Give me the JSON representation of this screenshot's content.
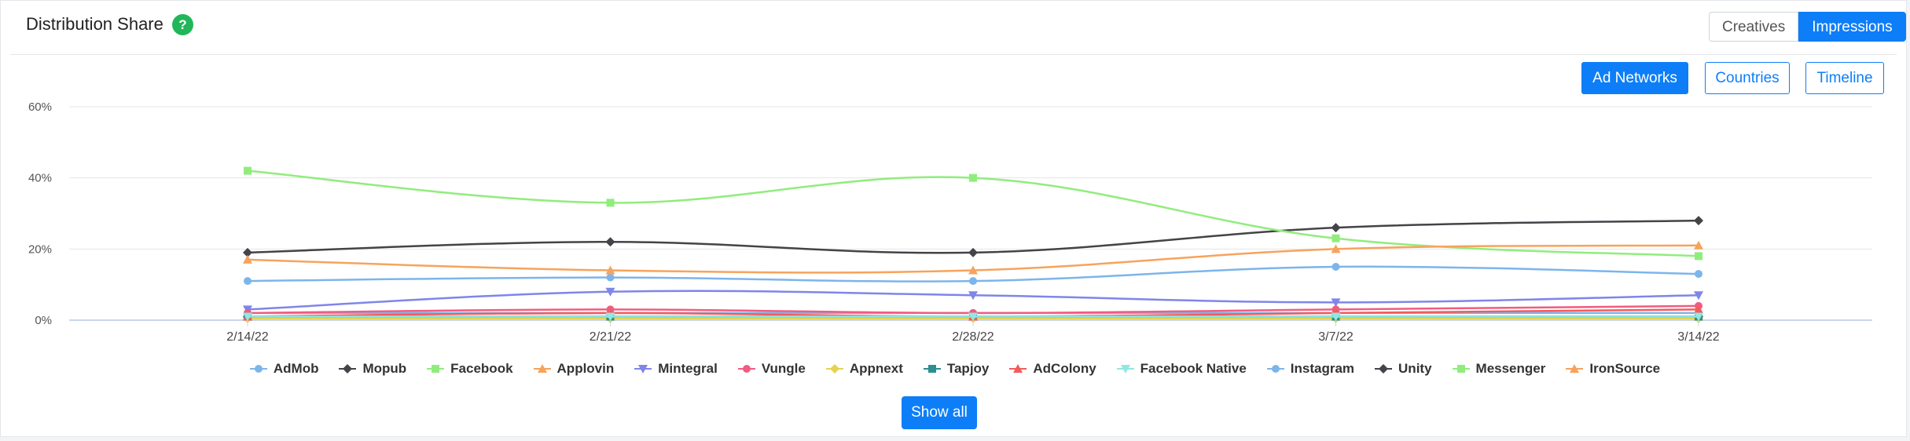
{
  "header": {
    "title": "Distribution Share",
    "help_label": "?"
  },
  "toggle": {
    "creatives_label": "Creatives",
    "impressions_label": "Impressions"
  },
  "tabs": {
    "ad_networks_label": "Ad Networks",
    "countries_label": "Countries",
    "timeline_label": "Timeline"
  },
  "show_all_label": "Show all",
  "chart_data": {
    "type": "line",
    "categories": [
      "2/14/22",
      "2/21/22",
      "2/28/22",
      "3/7/22",
      "3/14/22"
    ],
    "ylim": [
      0,
      60
    ],
    "yticks": [
      "0%",
      "20%",
      "40%",
      "60%"
    ],
    "ytick_values": [
      0,
      20,
      40,
      60
    ],
    "grid": true,
    "legend_position": "bottom",
    "series": [
      {
        "name": "AdMob",
        "color": "#7cb5ec",
        "marker": "circle",
        "values": [
          2,
          2,
          2,
          2,
          2
        ]
      },
      {
        "name": "Mopub",
        "color": "#434348",
        "marker": "diamond",
        "values": [
          1,
          1,
          1,
          1,
          1
        ]
      },
      {
        "name": "Facebook",
        "color": "#90ed7d",
        "marker": "square",
        "values": [
          1,
          1,
          1,
          1,
          1
        ]
      },
      {
        "name": "Applovin",
        "color": "#f7a35c",
        "marker": "triangle",
        "values": [
          1,
          1,
          1,
          1,
          1
        ]
      },
      {
        "name": "Mintegral",
        "color": "#8085e9",
        "marker": "triangle-down",
        "values": [
          3,
          8,
          7,
          5,
          7
        ]
      },
      {
        "name": "Vungle",
        "color": "#f15c80",
        "marker": "circle",
        "values": [
          2,
          3,
          2,
          3,
          4
        ]
      },
      {
        "name": "Appnext",
        "color": "#e4d354",
        "marker": "diamond",
        "values": [
          0.5,
          0.5,
          0.5,
          0.5,
          0.5
        ]
      },
      {
        "name": "Tapjoy",
        "color": "#2b908f",
        "marker": "square",
        "values": [
          1,
          1,
          1,
          1,
          1
        ]
      },
      {
        "name": "AdColony",
        "color": "#f45b5b",
        "marker": "triangle",
        "values": [
          1,
          2,
          1,
          2,
          3
        ]
      },
      {
        "name": "Facebook Native",
        "color": "#91e8e1",
        "marker": "triangle-down",
        "values": [
          1,
          1,
          1,
          1,
          1
        ]
      },
      {
        "name": "Instagram",
        "color": "#7cb5ec",
        "marker": "circle",
        "values": [
          11,
          12,
          11,
          15,
          13
        ]
      },
      {
        "name": "Unity",
        "color": "#434348",
        "marker": "diamond",
        "values": [
          19,
          22,
          19,
          26,
          28
        ]
      },
      {
        "name": "Messenger",
        "color": "#90ed7d",
        "marker": "square",
        "values": [
          42,
          33,
          40,
          23,
          18
        ]
      },
      {
        "name": "IronSource",
        "color": "#f7a35c",
        "marker": "triangle",
        "values": [
          17,
          14,
          14,
          20,
          21
        ]
      }
    ]
  }
}
